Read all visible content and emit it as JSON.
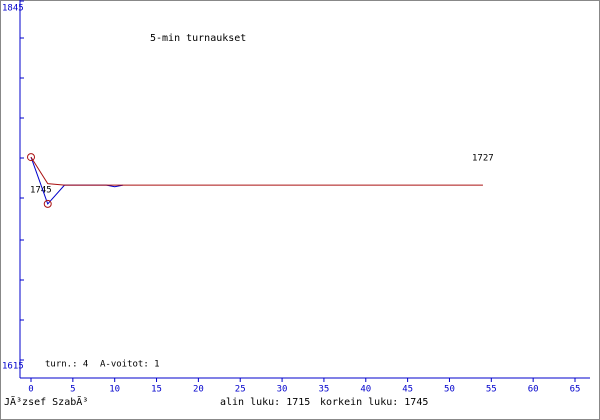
{
  "chart_data": {
    "type": "line",
    "title": "5-min turnaukset",
    "xlim": [
      0,
      65
    ],
    "xticks": [
      0,
      5,
      10,
      15,
      20,
      25,
      30,
      35,
      40,
      45,
      50,
      55,
      60,
      65
    ],
    "ylim": [
      1615,
      1845
    ],
    "yticks": [
      1615,
      1845
    ],
    "series": [
      {
        "color": "#0000cc",
        "x": [
          0,
          2,
          4,
          9,
          10,
          11
        ],
        "values": [
          1745,
          1715,
          1727,
          1727,
          1726,
          1727
        ]
      },
      {
        "color": "#aa1111",
        "x": [
          0,
          2,
          4,
          54
        ],
        "values": [
          1745,
          1728,
          1727,
          1727
        ]
      }
    ],
    "annotations": [
      "1727",
      "1745"
    ],
    "stats": [
      "turn.: 4",
      "A-voitot: 1"
    ],
    "footer": {
      "player": "JÃ³zsef SzabÃ³",
      "low": "alin luku: 1715",
      "high": "korkein luku: 1745"
    }
  }
}
